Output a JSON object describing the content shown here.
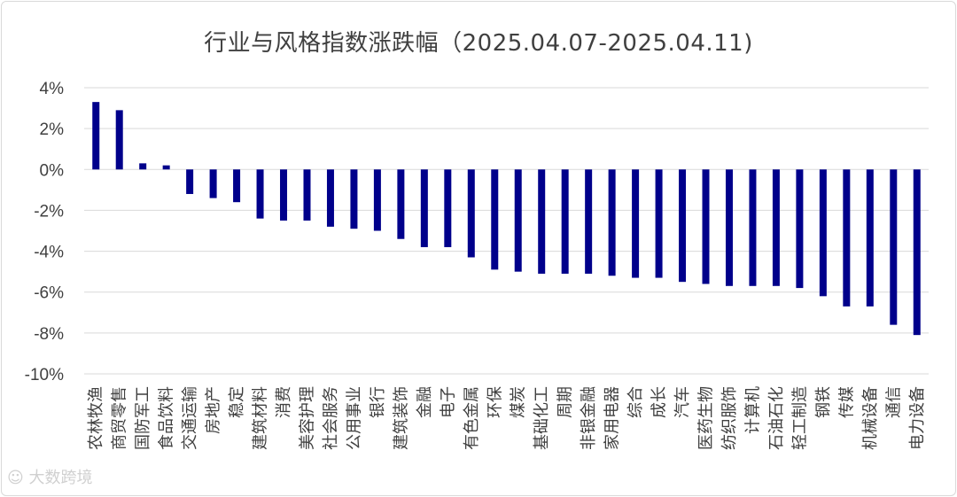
{
  "chart_data": {
    "type": "bar",
    "title": "行业与风格指数涨跌幅（2025.04.07-2025.04.11)",
    "xlabel": "",
    "ylabel": "",
    "ylim": [
      -10,
      4
    ],
    "yticks": [
      4,
      2,
      0,
      -2,
      -4,
      -6,
      -8,
      -10
    ],
    "ytick_labels": [
      "4%",
      "2%",
      "0%",
      "-2%",
      "-4%",
      "-6%",
      "-8%",
      "-10%"
    ],
    "grid": true,
    "legend": "none",
    "bar_color": "#00008B",
    "categories": [
      "农林牧渔",
      "商贸零售",
      "国防军工",
      "食品饮料",
      "交通运输",
      "房地产",
      "稳定",
      "建筑材料",
      "消费",
      "美容护理",
      "社会服务",
      "公用事业",
      "银行",
      "建筑装饰",
      "金融",
      "电子",
      "有色金属",
      "环保",
      "煤炭",
      "基础化工",
      "周期",
      "非银金融",
      "家用电器",
      "综合",
      "成长",
      "汽车",
      "医药生物",
      "纺织服饰",
      "计算机",
      "石油石化",
      "轻工制造",
      "钢铁",
      "传媒",
      "机械设备",
      "通信",
      "电力设备"
    ],
    "values": [
      3.3,
      2.9,
      0.3,
      0.2,
      -1.2,
      -1.4,
      -1.6,
      -2.4,
      -2.5,
      -2.5,
      -2.8,
      -2.9,
      -3.0,
      -3.4,
      -3.8,
      -3.8,
      -4.3,
      -4.9,
      -5.0,
      -5.1,
      -5.1,
      -5.1,
      -5.2,
      -5.3,
      -5.3,
      -5.5,
      -5.6,
      -5.7,
      -5.7,
      -5.7,
      -5.8,
      -6.2,
      -6.7,
      -6.7,
      -7.6,
      -8.1
    ]
  },
  "watermark": {
    "text": "大数跨境"
  }
}
